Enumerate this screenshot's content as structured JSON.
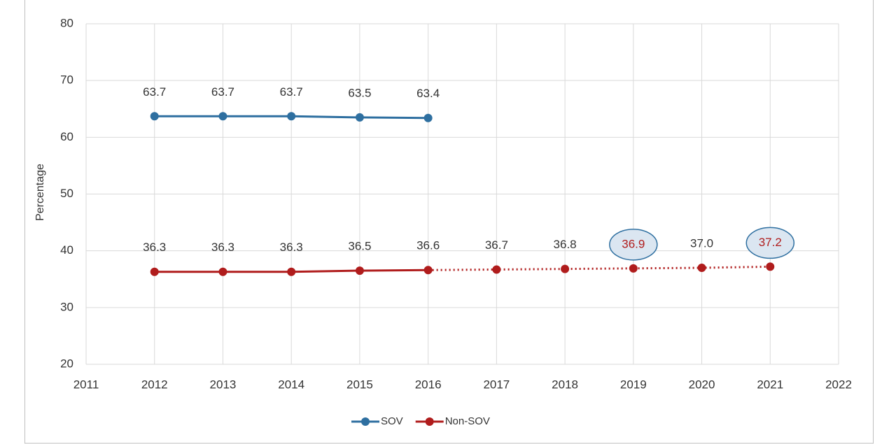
{
  "chart_data": {
    "type": "line",
    "y_label": "Percentage",
    "x": [
      2012,
      2013,
      2014,
      2015,
      2016,
      2017,
      2018,
      2019,
      2020,
      2021
    ],
    "series": [
      {
        "name": "SOV",
        "color": "#2e6fa0",
        "values": [
          63.7,
          63.7,
          63.7,
          63.5,
          63.4,
          null,
          null,
          null,
          null,
          null
        ],
        "value_labels": [
          "63.7",
          "63.7",
          "63.7",
          "63.5",
          "63.4",
          null,
          null,
          null,
          null,
          null
        ]
      },
      {
        "name": "Non-SOV",
        "color": "#b01c1c",
        "values": [
          36.3,
          36.3,
          36.3,
          36.5,
          36.6,
          36.7,
          36.8,
          36.9,
          37.0,
          37.2
        ],
        "value_labels": [
          "36.3",
          "36.3",
          "36.3",
          "36.5",
          "36.6",
          "36.7",
          "36.8",
          "36.9",
          "37.0",
          "37.2"
        ],
        "dotted_from": 2016,
        "highlight_x": [
          2019,
          2021
        ]
      }
    ],
    "xlim": [
      2011,
      2022
    ],
    "xticks": [
      2011,
      2012,
      2013,
      2014,
      2015,
      2016,
      2017,
      2018,
      2019,
      2020,
      2021,
      2022
    ],
    "ylim": [
      20,
      80
    ],
    "yticks": [
      20,
      30,
      40,
      50,
      60,
      70,
      80
    ],
    "grid": true,
    "legend": "bottom"
  }
}
